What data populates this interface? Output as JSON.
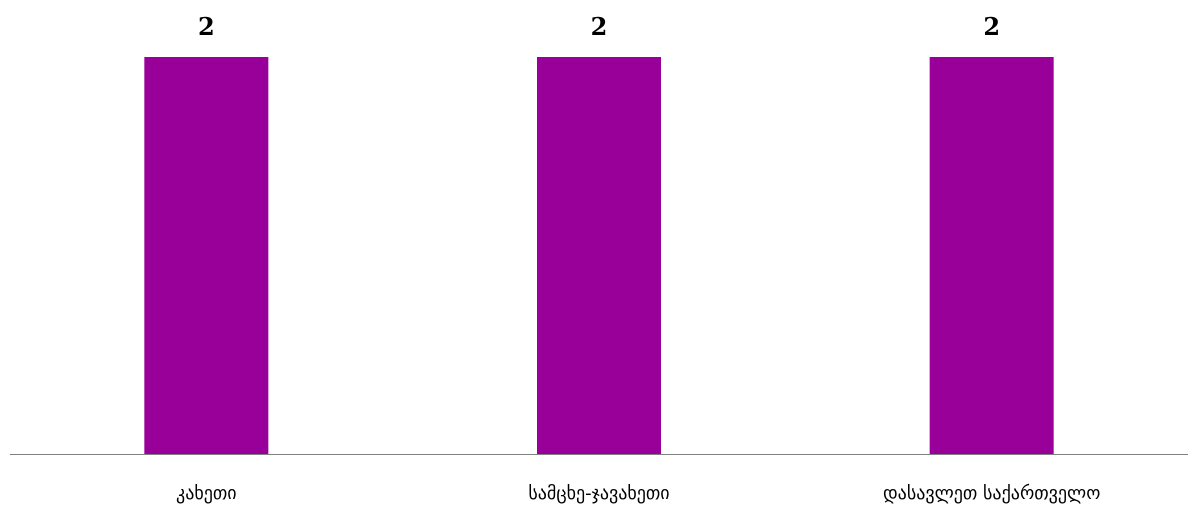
{
  "chart_data": {
    "type": "bar",
    "categories": [
      "კახეთი",
      "სამცხე-ჯავახეთი",
      "დასავლეთ საქართველო"
    ],
    "values": [
      2,
      2,
      2
    ],
    "title": "",
    "xlabel": "",
    "ylabel": "",
    "ylim": [
      0,
      2
    ],
    "grid": false,
    "legend": "none",
    "data_labels": true,
    "colors": {
      "bar": "#990099",
      "axis": "#808080",
      "text": "#000000"
    }
  }
}
